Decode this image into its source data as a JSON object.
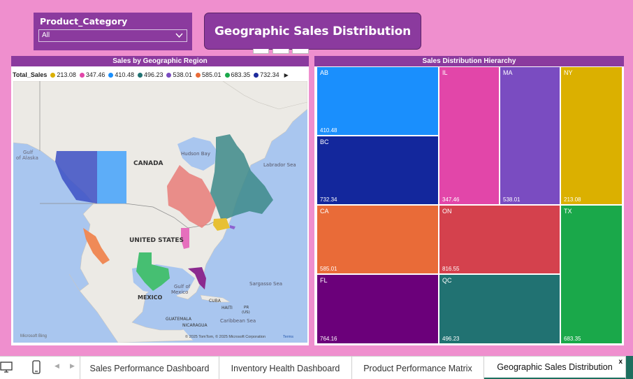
{
  "slicer": {
    "label": "Product_Category",
    "value": "All"
  },
  "page_title": "Geographic Sales Distribution",
  "map": {
    "title": "Sales by Geographic Region",
    "legend_label": "Total_Sales",
    "legend": [
      {
        "value": "213.08",
        "color": "#dbb000"
      },
      {
        "value": "347.46",
        "color": "#e246a9"
      },
      {
        "value": "410.48",
        "color": "#1a8ffd"
      },
      {
        "value": "496.23",
        "color": "#217272"
      },
      {
        "value": "538.01",
        "color": "#7a4cc1"
      },
      {
        "value": "585.01",
        "color": "#e96b38"
      },
      {
        "value": "683.35",
        "color": "#1aa84a"
      },
      {
        "value": "732.34",
        "color": "#1d2b9c"
      }
    ],
    "labels": {
      "gulf_alaska_1": "Gulf",
      "gulf_alaska_2": "of Alaska",
      "canada": "CANADA",
      "hudson": "Hudson Bay",
      "labrador": "Labrador Sea",
      "usa": "UNITED STATES",
      "mexico": "MEXICO",
      "gulf_mexico_1": "Gulf of",
      "gulf_mexico_2": "Mexico",
      "sargasso": "Sargasso Sea",
      "cuba": "CUBA",
      "haiti": "HAITI",
      "pr_1": "PR",
      "pr_2": "(US)",
      "guatemala": "GUATEMALA",
      "nicaragua": "NICARAGUA",
      "caribbean": "Caribbean Sea",
      "bing": "Microsoft Bing",
      "copyright": "© 2025 TomTom, © 2025 Microsoft Corporation",
      "terms": "Terms"
    }
  },
  "treemap": {
    "title": "Sales Distribution Hierarchy",
    "tiles": [
      {
        "name": "AB",
        "value": "410.48",
        "color": "#1a8ffd"
      },
      {
        "name": "BC",
        "value": "732.34",
        "color": "#13279c"
      },
      {
        "name": "IL",
        "value": "347.46",
        "color": "#e246a9"
      },
      {
        "name": "MA",
        "value": "538.01",
        "color": "#7a4cc1"
      },
      {
        "name": "NY",
        "value": "213.08",
        "color": "#dbb000"
      },
      {
        "name": "CA",
        "value": "585.01",
        "color": "#e96b38"
      },
      {
        "name": "ON",
        "value": "816.55",
        "color": "#d4414d"
      },
      {
        "name": "TX",
        "value": "683.35",
        "color": "#1aa84a"
      },
      {
        "name": "FL",
        "value": "764.16",
        "color": "#6b007a"
      },
      {
        "name": "QC",
        "value": "496.23",
        "color": "#217272"
      }
    ]
  },
  "tabs": [
    {
      "label": "Sales Performance Dashboard"
    },
    {
      "label": "Inventory Health Dashboard"
    },
    {
      "label": "Product Performance Matrix"
    },
    {
      "label": "Geographic Sales Distribution"
    }
  ],
  "close_label": "x"
}
